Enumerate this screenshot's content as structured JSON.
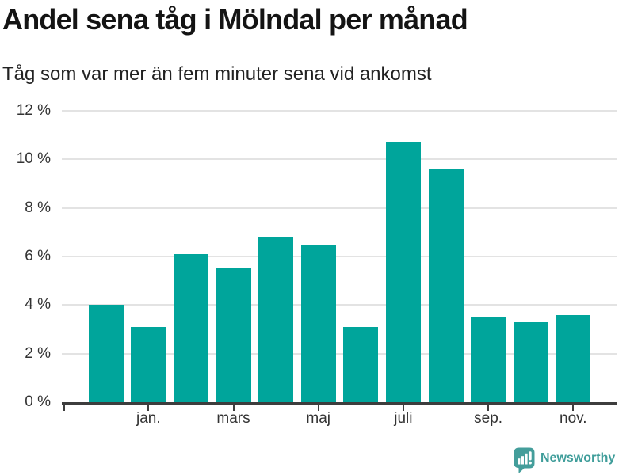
{
  "header": {
    "title": "Andel sena tåg i Mölndal per månad",
    "subtitle": "Tåg som var mer än fem minuter sena vid ankomst"
  },
  "chart_data": {
    "type": "bar",
    "title": "Andel sena tåg i Mölndal per månad",
    "subtitle": "Tåg som var mer än fem minuter sena vid ankomst",
    "unit": "percent",
    "n_bars": 12,
    "values": [
      4.0,
      3.1,
      6.1,
      5.5,
      6.8,
      6.5,
      3.1,
      10.7,
      9.6,
      3.5,
      3.3,
      3.6
    ],
    "x_tick_labels": [
      "jan.",
      "mars",
      "maj",
      "juli",
      "sep.",
      "nov."
    ],
    "x_tick_bar_indexes_0based": [
      1,
      3,
      5,
      7,
      9,
      11
    ],
    "y_tick_labels": [
      "0 %",
      "2 %",
      "4 %",
      "6 %",
      "8 %",
      "10 %",
      "12 %"
    ],
    "y_tick_values": [
      0,
      2,
      4,
      6,
      8,
      10,
      12
    ],
    "ylim": [
      0,
      12
    ],
    "grid": "horizontal",
    "legend": "none",
    "bar_color": "#00a59b"
  },
  "branding": {
    "wordmark": "Newsworthy",
    "logo_icon": "newsworthy-speech-bubble-bar-chart-icon",
    "color": "#3f9d9a"
  },
  "colors": {
    "background": "#ffffff",
    "bar": "#00a59b",
    "axis_line": "#3d3d3d",
    "gridline": "#e3e3e3",
    "axis_label": "#333333",
    "title": "#141414",
    "subtitle": "#222222",
    "brand": "#3f9d9a"
  }
}
